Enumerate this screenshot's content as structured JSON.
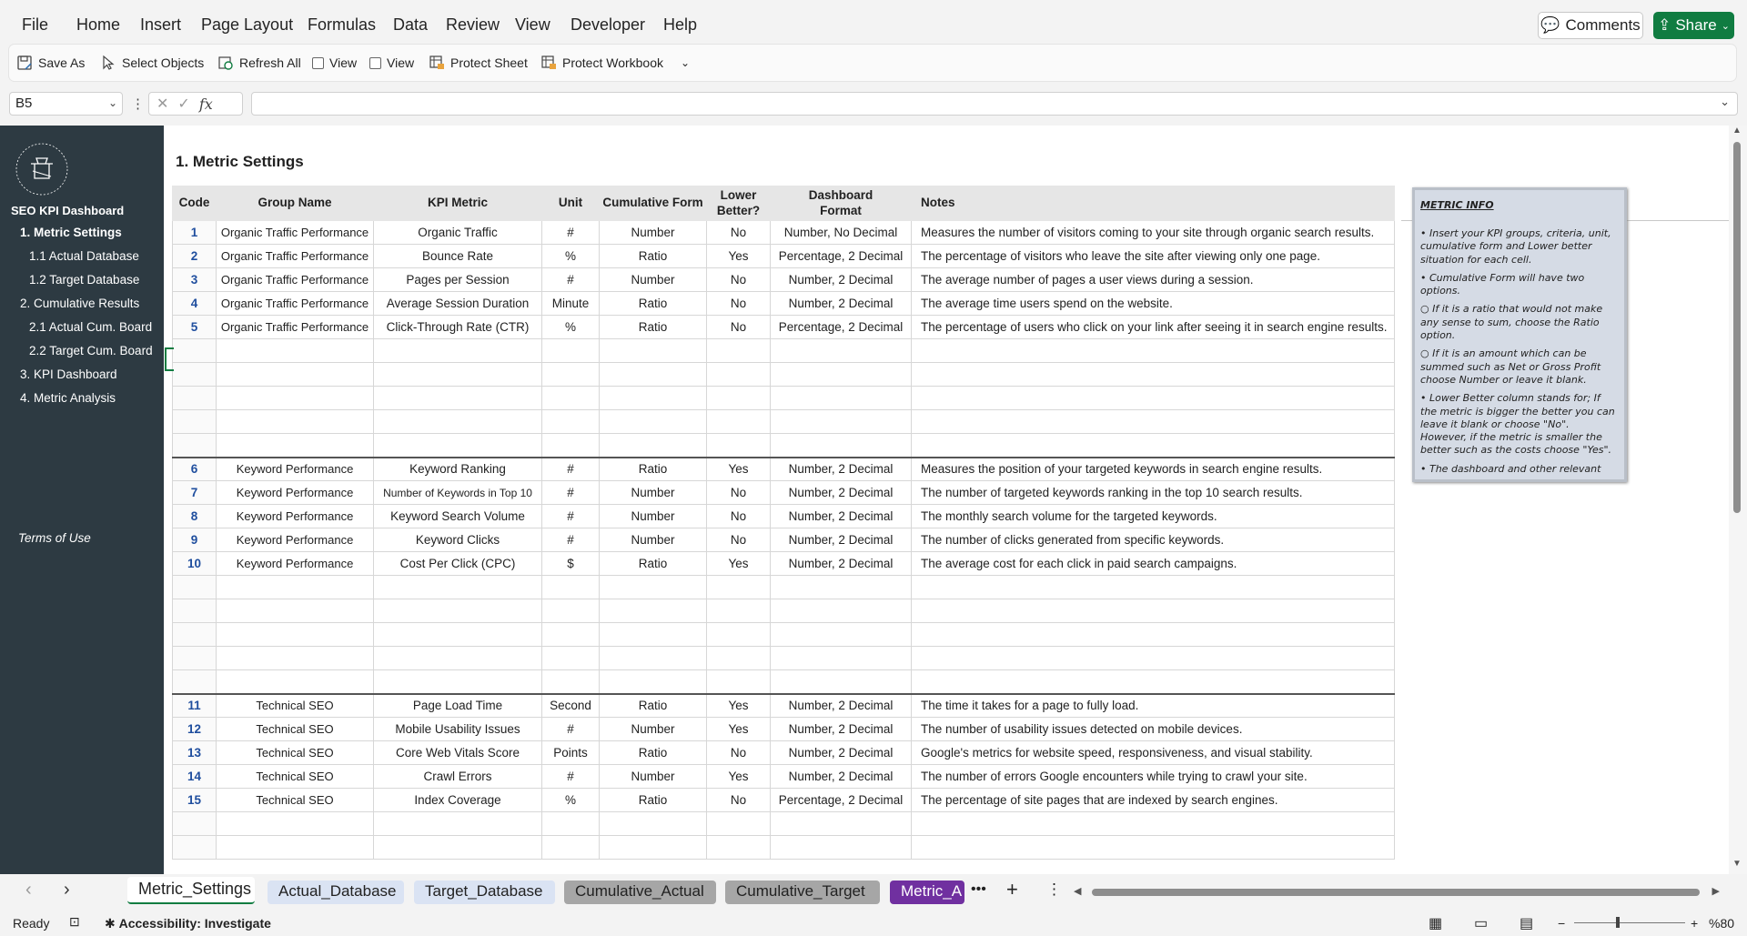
{
  "menu": [
    "File",
    "Home",
    "Insert",
    "Page Layout",
    "Formulas",
    "Data",
    "Review",
    "View",
    "Developer",
    "Help"
  ],
  "comments_label": "Comments",
  "share_label": "Share",
  "ribbon": {
    "save_as": "Save As",
    "select_objects": "Select Objects",
    "refresh_all": "Refresh All",
    "view1": "View",
    "view2": "View",
    "protect_sheet": "Protect Sheet",
    "protect_workbook": "Protect Workbook"
  },
  "formula_bar": {
    "name_box": "B5",
    "fx": "fx",
    "formula": ""
  },
  "sidebar": {
    "title": "SEO KPI Dashboard",
    "items": [
      {
        "label": "1. Metric Settings",
        "active": true,
        "indent": 0
      },
      {
        "label": "1.1 Actual Database",
        "active": false,
        "indent": 1
      },
      {
        "label": "1.2 Target Database",
        "active": false,
        "indent": 1
      },
      {
        "label": "2. Cumulative Results",
        "active": false,
        "indent": 0
      },
      {
        "label": "2.1 Actual Cum. Board",
        "active": false,
        "indent": 1
      },
      {
        "label": "2.2 Target Cum. Board",
        "active": false,
        "indent": 1
      },
      {
        "label": "3. KPI Dashboard",
        "active": false,
        "indent": 0
      },
      {
        "label": "4. Metric Analysis",
        "active": false,
        "indent": 0
      }
    ],
    "terms": "Terms of Use"
  },
  "sheet_title": "1. Metric Settings",
  "table": {
    "headers": [
      "Code",
      "Group Name",
      "KPI Metric",
      "Unit",
      "Cumulative Form",
      "Lower Better?",
      "Dashboard Format",
      "Notes"
    ],
    "rows": [
      {
        "code": "1",
        "group": "Organic Traffic Performance",
        "metric": "Organic Traffic",
        "unit": "#",
        "cum": "Number",
        "lower": "No",
        "format": "Number, No Decimal",
        "notes": "Measures the number of visitors coming to your site through organic search results."
      },
      {
        "code": "2",
        "group": "Organic Traffic Performance",
        "metric": "Bounce Rate",
        "unit": "%",
        "cum": "Ratio",
        "lower": "Yes",
        "format": "Percentage, 2 Decimal",
        "notes": "The percentage of visitors who leave the site after viewing only one page."
      },
      {
        "code": "3",
        "group": "Organic Traffic Performance",
        "metric": "Pages per Session",
        "unit": "#",
        "cum": "Number",
        "lower": "No",
        "format": "Number, 2 Decimal",
        "notes": "The average number of pages a user views during a session."
      },
      {
        "code": "4",
        "group": "Organic Traffic Performance",
        "metric": "Average Session Duration",
        "unit": "Minute",
        "cum": "Ratio",
        "lower": "No",
        "format": "Number, 2 Decimal",
        "notes": "The average time users spend on the website."
      },
      {
        "code": "5",
        "group": "Organic Traffic Performance",
        "metric": "Click-Through Rate (CTR)",
        "unit": "%",
        "cum": "Ratio",
        "lower": "No",
        "format": "Percentage, 2 Decimal",
        "notes": "The percentage of users who click on your link after seeing it in search engine results."
      },
      {
        "code": "",
        "group": "",
        "metric": "",
        "unit": "",
        "cum": "",
        "lower": "",
        "format": "",
        "notes": ""
      },
      {
        "code": "",
        "group": "",
        "metric": "",
        "unit": "",
        "cum": "",
        "lower": "",
        "format": "",
        "notes": ""
      },
      {
        "code": "",
        "group": "",
        "metric": "",
        "unit": "",
        "cum": "",
        "lower": "",
        "format": "",
        "notes": ""
      },
      {
        "code": "",
        "group": "",
        "metric": "",
        "unit": "",
        "cum": "",
        "lower": "",
        "format": "",
        "notes": ""
      },
      {
        "code": "",
        "group": "",
        "metric": "",
        "unit": "",
        "cum": "",
        "lower": "",
        "format": "",
        "notes": ""
      },
      {
        "code": "6",
        "group": "Keyword Performance",
        "metric": "Keyword Ranking",
        "unit": "#",
        "cum": "Ratio",
        "lower": "Yes",
        "format": "Number, 2 Decimal",
        "notes": "Measures the position of your targeted keywords in search engine results.",
        "sep": true
      },
      {
        "code": "7",
        "group": "Keyword Performance",
        "metric": "Number of Keywords in Top 10",
        "unit": "#",
        "cum": "Number",
        "lower": "No",
        "format": "Number, 2 Decimal",
        "notes": "The number of targeted keywords ranking in the top 10 search results."
      },
      {
        "code": "8",
        "group": "Keyword Performance",
        "metric": "Keyword Search Volume",
        "unit": "#",
        "cum": "Number",
        "lower": "No",
        "format": "Number, 2 Decimal",
        "notes": "The monthly search volume for the targeted keywords."
      },
      {
        "code": "9",
        "group": "Keyword Performance",
        "metric": "Keyword Clicks",
        "unit": "#",
        "cum": "Number",
        "lower": "No",
        "format": "Number, 2 Decimal",
        "notes": "The number of clicks generated from specific keywords."
      },
      {
        "code": "10",
        "group": "Keyword Performance",
        "metric": "Cost Per Click (CPC)",
        "unit": "$",
        "cum": "Ratio",
        "lower": "Yes",
        "format": "Number, 2 Decimal",
        "notes": "The average cost for each click in paid search campaigns."
      },
      {
        "code": "",
        "group": "",
        "metric": "",
        "unit": "",
        "cum": "",
        "lower": "",
        "format": "",
        "notes": ""
      },
      {
        "code": "",
        "group": "",
        "metric": "",
        "unit": "",
        "cum": "",
        "lower": "",
        "format": "",
        "notes": ""
      },
      {
        "code": "",
        "group": "",
        "metric": "",
        "unit": "",
        "cum": "",
        "lower": "",
        "format": "",
        "notes": ""
      },
      {
        "code": "",
        "group": "",
        "metric": "",
        "unit": "",
        "cum": "",
        "lower": "",
        "format": "",
        "notes": ""
      },
      {
        "code": "",
        "group": "",
        "metric": "",
        "unit": "",
        "cum": "",
        "lower": "",
        "format": "",
        "notes": ""
      },
      {
        "code": "11",
        "group": "Technical SEO",
        "metric": "Page Load Time",
        "unit": "Second",
        "cum": "Ratio",
        "lower": "Yes",
        "format": "Number, 2 Decimal",
        "notes": "The time it takes for a page to fully load.",
        "sep": true
      },
      {
        "code": "12",
        "group": "Technical SEO",
        "metric": "Mobile Usability Issues",
        "unit": "#",
        "cum": "Number",
        "lower": "Yes",
        "format": "Number, 2 Decimal",
        "notes": "The number of usability issues detected on mobile devices."
      },
      {
        "code": "13",
        "group": "Technical SEO",
        "metric": "Core Web Vitals Score",
        "unit": "Points",
        "cum": "Ratio",
        "lower": "No",
        "format": "Number, 2 Decimal",
        "notes": "Google's metrics for website speed, responsiveness, and visual stability."
      },
      {
        "code": "14",
        "group": "Technical SEO",
        "metric": "Crawl Errors",
        "unit": "#",
        "cum": "Number",
        "lower": "Yes",
        "format": "Number, 2 Decimal",
        "notes": "The number of errors Google encounters while trying to crawl your site."
      },
      {
        "code": "15",
        "group": "Technical SEO",
        "metric": "Index Coverage",
        "unit": "%",
        "cum": "Ratio",
        "lower": "No",
        "format": "Percentage, 2 Decimal",
        "notes": "The percentage of site pages that are indexed by search engines."
      },
      {
        "code": "",
        "group": "",
        "metric": "",
        "unit": "",
        "cum": "",
        "lower": "",
        "format": "",
        "notes": ""
      },
      {
        "code": "",
        "group": "",
        "metric": "",
        "unit": "",
        "cum": "",
        "lower": "",
        "format": "",
        "notes": ""
      }
    ]
  },
  "info_box": {
    "title": "METRIC INFO",
    "lines": [
      "• Insert your KPI groups, criteria, unit, cumulative form and Lower better situation for each cell.",
      "• Cumulative Form will have two options.",
      "○ If it is a ratio that would not make any sense to sum, choose the Ratio option.",
      "○ If it is an amount which can be summed such as Net or Gross Profit choose Number or leave it blank.",
      "• Lower Better column stands for; If the metric is bigger the better you can leave it blank or choose \"No\". However, if the metric is smaller the better such as the costs choose \"Yes\".",
      "• The dashboard and other relevant"
    ]
  },
  "tabs": [
    {
      "label": "Metric_Settings",
      "bg": "#ffffff",
      "color": "#222222"
    },
    {
      "label": "Actual_Database",
      "bg": "#dae3f3",
      "color": "#222222"
    },
    {
      "label": "Target_Database",
      "bg": "#dae3f3",
      "color": "#222222"
    },
    {
      "label": "Cumulative_Actual",
      "bg": "#a6a6a6",
      "color": "#222222"
    },
    {
      "label": "Cumulative_Target",
      "bg": "#a6a6a6",
      "color": "#222222"
    },
    {
      "label": "Metric_A",
      "bg": "#7030a0",
      "color": "#ffffff"
    }
  ],
  "status": {
    "ready": "Ready",
    "accessibility": "Accessibility: Investigate",
    "zoom": "%80"
  }
}
